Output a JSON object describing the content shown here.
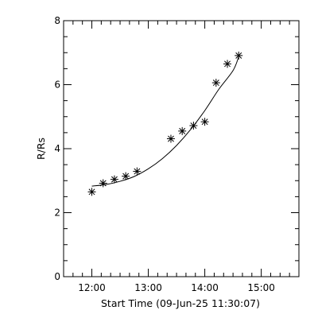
{
  "chart_data": {
    "type": "scatter",
    "title": "",
    "xlabel": "Start Time (09-Jun-25 11:30:07)",
    "ylabel": "R/Rs",
    "xlim": [
      "11:30",
      "15:40"
    ],
    "ylim": [
      0,
      8
    ],
    "x_ticks": [
      "12:00",
      "13:00",
      "14:00",
      "15:00"
    ],
    "y_ticks": [
      "0",
      "2",
      "4",
      "6",
      "8"
    ],
    "grid": false,
    "series": [
      {
        "marker": "asterisk",
        "points": [
          {
            "x": "12:00",
            "y": 2.65
          },
          {
            "x": "12:12",
            "y": 2.92
          },
          {
            "x": "12:24",
            "y": 3.04
          },
          {
            "x": "12:36",
            "y": 3.14
          },
          {
            "x": "12:48",
            "y": 3.29
          },
          {
            "x": "13:24",
            "y": 4.31
          },
          {
            "x": "13:36",
            "y": 4.55
          },
          {
            "x": "13:48",
            "y": 4.72
          },
          {
            "x": "14:00",
            "y": 4.84
          },
          {
            "x": "14:12",
            "y": 6.06
          },
          {
            "x": "14:24",
            "y": 6.65
          },
          {
            "x": "14:36",
            "y": 6.91
          }
        ]
      },
      {
        "style": "line",
        "points": [
          {
            "x": "12:00",
            "y": 2.83
          },
          {
            "x": "12:15",
            "y": 2.88
          },
          {
            "x": "12:30",
            "y": 2.98
          },
          {
            "x": "12:45",
            "y": 3.13
          },
          {
            "x": "13:00",
            "y": 3.37
          },
          {
            "x": "13:15",
            "y": 3.69
          },
          {
            "x": "13:30",
            "y": 4.1
          },
          {
            "x": "13:45",
            "y": 4.6
          },
          {
            "x": "14:00",
            "y": 5.19
          },
          {
            "x": "14:15",
            "y": 5.86
          },
          {
            "x": "14:30",
            "y": 6.44
          },
          {
            "x": "14:36",
            "y": 6.87
          }
        ]
      }
    ]
  }
}
